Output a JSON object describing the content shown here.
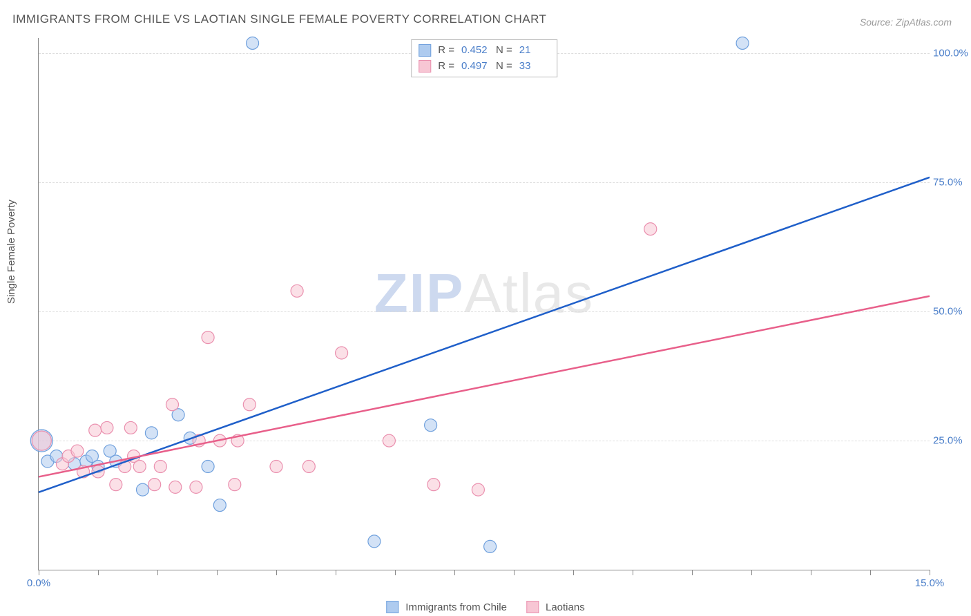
{
  "title": "IMMIGRANTS FROM CHILE VS LAOTIAN SINGLE FEMALE POVERTY CORRELATION CHART",
  "source": "Source: ZipAtlas.com",
  "ylabel": "Single Female Poverty",
  "watermark_a": "ZIP",
  "watermark_b": "Atlas",
  "chart": {
    "type": "scatter",
    "background_color": "#ffffff",
    "grid_color": "#dddddd",
    "axis_color": "#888888",
    "text_color": "#555555",
    "value_color": "#4a7ec9",
    "xlim": [
      0,
      15
    ],
    "ylim": [
      0,
      103
    ],
    "xticks": [
      0,
      1,
      2,
      3,
      4,
      5,
      6,
      7,
      8,
      9,
      10,
      11,
      12,
      13,
      14,
      15
    ],
    "xticks_labeled": [
      {
        "v": 0,
        "label": "0.0%"
      },
      {
        "v": 15,
        "label": "15.0%"
      }
    ],
    "yticks": [
      {
        "v": 25,
        "label": "25.0%"
      },
      {
        "v": 50,
        "label": "50.0%"
      },
      {
        "v": 75,
        "label": "75.0%"
      },
      {
        "v": 100,
        "label": "100.0%"
      }
    ],
    "series": [
      {
        "name": "Immigrants from Chile",
        "legend_label": "Immigrants from Chile",
        "fill": "#aecbef",
        "stroke": "#6fa0dd",
        "trend_color": "#1f5fc9",
        "r_label": "R =",
        "r_value": "0.452",
        "n_label": "N =",
        "n_value": "21",
        "marker_radius": 9,
        "marker_opacity": 0.55,
        "trend": {
          "x1": 0,
          "y1": 15,
          "x2": 15,
          "y2": 76
        },
        "points": [
          {
            "x": 0.05,
            "y": 25,
            "r": 16
          },
          {
            "x": 0.15,
            "y": 21
          },
          {
            "x": 0.3,
            "y": 22
          },
          {
            "x": 0.6,
            "y": 20.5
          },
          {
            "x": 0.8,
            "y": 21
          },
          {
            "x": 0.9,
            "y": 22
          },
          {
            "x": 1.0,
            "y": 20
          },
          {
            "x": 1.2,
            "y": 23
          },
          {
            "x": 1.3,
            "y": 21
          },
          {
            "x": 1.9,
            "y": 26.5
          },
          {
            "x": 1.75,
            "y": 15.5
          },
          {
            "x": 2.35,
            "y": 30
          },
          {
            "x": 2.55,
            "y": 25.5
          },
          {
            "x": 2.85,
            "y": 20
          },
          {
            "x": 3.05,
            "y": 12.5
          },
          {
            "x": 3.6,
            "y": 102
          },
          {
            "x": 5.65,
            "y": 5.5
          },
          {
            "x": 6.6,
            "y": 28
          },
          {
            "x": 7.6,
            "y": 4.5
          },
          {
            "x": 11.85,
            "y": 102
          }
        ]
      },
      {
        "name": "Laotians",
        "legend_label": "Laotians",
        "fill": "#f7c6d4",
        "stroke": "#ea8fae",
        "trend_color": "#e85f8a",
        "r_label": "R =",
        "r_value": "0.497",
        "n_label": "N =",
        "n_value": "33",
        "marker_radius": 9,
        "marker_opacity": 0.55,
        "trend": {
          "x1": 0,
          "y1": 18,
          "x2": 15,
          "y2": 53
        },
        "points": [
          {
            "x": 0.05,
            "y": 25,
            "r": 14
          },
          {
            "x": 0.4,
            "y": 20.5
          },
          {
            "x": 0.5,
            "y": 22
          },
          {
            "x": 0.65,
            "y": 23
          },
          {
            "x": 0.75,
            "y": 19
          },
          {
            "x": 0.95,
            "y": 27
          },
          {
            "x": 1.0,
            "y": 19
          },
          {
            "x": 1.15,
            "y": 27.5
          },
          {
            "x": 1.3,
            "y": 16.5
          },
          {
            "x": 1.45,
            "y": 20
          },
          {
            "x": 1.55,
            "y": 27.5
          },
          {
            "x": 1.6,
            "y": 22
          },
          {
            "x": 1.7,
            "y": 20
          },
          {
            "x": 1.95,
            "y": 16.5
          },
          {
            "x": 2.05,
            "y": 20
          },
          {
            "x": 2.25,
            "y": 32
          },
          {
            "x": 2.3,
            "y": 16
          },
          {
            "x": 2.65,
            "y": 16
          },
          {
            "x": 2.7,
            "y": 25
          },
          {
            "x": 2.85,
            "y": 45
          },
          {
            "x": 3.05,
            "y": 25
          },
          {
            "x": 3.3,
            "y": 16.5
          },
          {
            "x": 3.35,
            "y": 25
          },
          {
            "x": 3.55,
            "y": 32
          },
          {
            "x": 4.0,
            "y": 20
          },
          {
            "x": 4.35,
            "y": 54
          },
          {
            "x": 4.55,
            "y": 20
          },
          {
            "x": 5.1,
            "y": 42
          },
          {
            "x": 5.9,
            "y": 25
          },
          {
            "x": 6.65,
            "y": 16.5
          },
          {
            "x": 7.4,
            "y": 15.5
          },
          {
            "x": 10.3,
            "y": 66
          }
        ]
      }
    ]
  }
}
